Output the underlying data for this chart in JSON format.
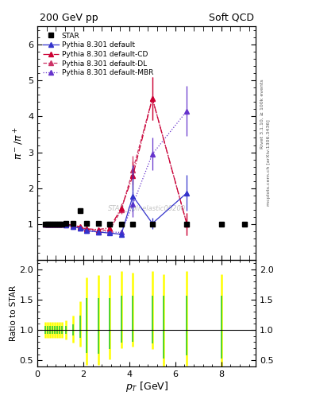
{
  "title_left": "200 GeV pp",
  "title_right": "Soft QCD",
  "ylabel_main": "$\\pi^- / \\pi^+$",
  "ylabel_ratio": "Ratio to STAR",
  "xlabel": "$p_T$ [GeV]",
  "right_label_top": "Rivet 3.1.10, ≥ 100k events",
  "right_label_bot": "mcplots.cern.ch [arXiv:1306.3436]",
  "watermark": "STAR_ppInelastic00200",
  "ylim_main": [
    0.0,
    6.5
  ],
  "ylim_ratio": [
    0.4,
    2.15
  ],
  "xlim": [
    0.0,
    9.5
  ],
  "yticks_main": [
    1,
    2,
    3,
    4,
    5,
    6
  ],
  "yticks_ratio": [
    0.5,
    1.0,
    1.5,
    2.0
  ],
  "star_x": [
    0.35,
    0.45,
    0.55,
    0.65,
    0.75,
    0.85,
    0.95,
    1.05,
    1.25,
    1.55,
    1.85,
    2.15,
    2.65,
    3.15,
    3.65,
    4.15,
    5.0,
    6.5,
    8.0,
    9.0
  ],
  "star_y": [
    1.01,
    1.0,
    1.0,
    1.0,
    1.01,
    1.0,
    1.0,
    1.0,
    1.02,
    1.03,
    1.38,
    1.02,
    1.02,
    1.0,
    1.01,
    1.0,
    1.0,
    1.0,
    1.0,
    1.0
  ],
  "star_yerr": [
    0.02,
    0.02,
    0.02,
    0.02,
    0.02,
    0.02,
    0.02,
    0.02,
    0.03,
    0.03,
    0.04,
    0.05,
    0.05,
    0.05,
    0.05,
    0.05,
    0.05,
    0.05,
    0.05,
    0.05
  ],
  "pythia_default_x": [
    0.35,
    0.45,
    0.55,
    0.65,
    0.75,
    0.85,
    0.95,
    1.05,
    1.25,
    1.55,
    1.85,
    2.15,
    2.65,
    3.15,
    3.65,
    4.15,
    5.0,
    6.5
  ],
  "pythia_default_y": [
    1.0,
    1.0,
    1.0,
    1.0,
    1.0,
    1.0,
    0.99,
    0.99,
    0.97,
    0.94,
    0.88,
    0.82,
    0.78,
    0.75,
    0.72,
    1.78,
    1.02,
    1.87
  ],
  "pythia_default_yerr_lo": [
    0.005,
    0.005,
    0.005,
    0.005,
    0.005,
    0.005,
    0.005,
    0.005,
    0.01,
    0.01,
    0.02,
    0.03,
    0.04,
    0.06,
    0.08,
    0.4,
    0.15,
    0.5
  ],
  "pythia_default_yerr_hi": [
    0.005,
    0.005,
    0.005,
    0.005,
    0.005,
    0.005,
    0.005,
    0.005,
    0.01,
    0.01,
    0.02,
    0.03,
    0.04,
    0.06,
    0.08,
    0.85,
    0.15,
    0.5
  ],
  "pythia_cd_x": [
    0.35,
    0.45,
    0.55,
    0.65,
    0.75,
    0.85,
    0.95,
    1.05,
    1.25,
    1.55,
    1.85,
    2.15,
    2.65,
    3.15,
    3.65,
    4.15,
    5.0,
    6.5
  ],
  "pythia_cd_y": [
    1.0,
    1.0,
    1.0,
    1.0,
    1.0,
    1.0,
    1.0,
    1.0,
    1.0,
    0.97,
    0.93,
    0.87,
    0.85,
    0.9,
    1.45,
    2.35,
    4.5,
    1.0
  ],
  "pythia_cd_yerr_lo": [
    0.005,
    0.005,
    0.005,
    0.005,
    0.005,
    0.005,
    0.005,
    0.005,
    0.01,
    0.01,
    0.02,
    0.03,
    0.05,
    0.08,
    0.12,
    0.4,
    0.6,
    0.3
  ],
  "pythia_cd_yerr_hi": [
    0.005,
    0.005,
    0.005,
    0.005,
    0.005,
    0.005,
    0.005,
    0.005,
    0.01,
    0.01,
    0.02,
    0.03,
    0.05,
    0.08,
    0.12,
    0.4,
    0.6,
    0.3
  ],
  "pythia_dl_x": [
    0.35,
    0.45,
    0.55,
    0.65,
    0.75,
    0.85,
    0.95,
    1.05,
    1.25,
    1.55,
    1.85,
    2.15,
    2.65,
    3.15,
    3.65,
    4.15,
    5.0,
    6.5
  ],
  "pythia_dl_y": [
    1.0,
    1.0,
    1.0,
    1.0,
    1.0,
    1.0,
    1.0,
    1.0,
    0.99,
    0.97,
    0.91,
    0.86,
    0.82,
    0.84,
    1.4,
    2.5,
    4.5,
    1.0
  ],
  "pythia_dl_yerr_lo": [
    0.005,
    0.005,
    0.005,
    0.005,
    0.005,
    0.005,
    0.005,
    0.005,
    0.01,
    0.01,
    0.02,
    0.03,
    0.05,
    0.07,
    0.12,
    0.4,
    0.6,
    0.3
  ],
  "pythia_dl_yerr_hi": [
    0.005,
    0.005,
    0.005,
    0.005,
    0.005,
    0.005,
    0.005,
    0.005,
    0.01,
    0.01,
    0.02,
    0.03,
    0.05,
    0.07,
    0.12,
    0.4,
    0.6,
    0.3
  ],
  "pythia_mbr_x": [
    0.35,
    0.45,
    0.55,
    0.65,
    0.75,
    0.85,
    0.95,
    1.05,
    1.25,
    1.55,
    1.85,
    2.15,
    2.65,
    3.15,
    3.65,
    4.15,
    5.0,
    6.5
  ],
  "pythia_mbr_y": [
    1.0,
    1.0,
    1.0,
    1.0,
    1.0,
    1.0,
    0.99,
    0.99,
    0.97,
    0.94,
    0.88,
    0.82,
    0.78,
    0.78,
    0.77,
    1.55,
    2.95,
    4.15
  ],
  "pythia_mbr_yerr_lo": [
    0.005,
    0.005,
    0.005,
    0.005,
    0.005,
    0.005,
    0.005,
    0.005,
    0.01,
    0.01,
    0.02,
    0.03,
    0.04,
    0.06,
    0.08,
    0.35,
    0.45,
    0.7
  ],
  "pythia_mbr_yerr_hi": [
    0.005,
    0.005,
    0.005,
    0.005,
    0.005,
    0.005,
    0.005,
    0.005,
    0.01,
    0.01,
    0.02,
    0.03,
    0.04,
    0.06,
    0.08,
    0.35,
    0.45,
    0.7
  ],
  "color_star": "#000000",
  "color_default": "#3333cc",
  "color_cd": "#cc0033",
  "color_dl": "#cc3366",
  "color_mbr": "#6633cc",
  "ratio_yellow_x": [
    0.35,
    0.45,
    0.55,
    0.65,
    0.75,
    0.85,
    0.95,
    1.05,
    1.25,
    1.55,
    1.85,
    2.15,
    2.65,
    3.15,
    3.65,
    4.15,
    5.0,
    5.5,
    6.5,
    8.0
  ],
  "ratio_yellow_lo": [
    0.87,
    0.87,
    0.87,
    0.87,
    0.87,
    0.87,
    0.87,
    0.87,
    0.84,
    0.79,
    0.73,
    0.42,
    0.42,
    0.52,
    0.7,
    0.72,
    0.68,
    0.38,
    0.41,
    0.4
  ],
  "ratio_yellow_hi": [
    1.13,
    1.13,
    1.13,
    1.13,
    1.13,
    1.13,
    1.13,
    1.13,
    1.16,
    1.23,
    1.47,
    1.87,
    1.9,
    1.9,
    1.97,
    1.94,
    1.97,
    1.92,
    1.97,
    1.92
  ],
  "ratio_green_x": [
    0.35,
    0.45,
    0.55,
    0.65,
    0.75,
    0.85,
    0.95,
    1.05,
    1.25,
    1.55,
    1.85,
    2.15,
    2.65,
    3.15,
    3.65,
    4.15,
    5.0,
    5.5,
    6.5,
    8.0
  ],
  "ratio_green_lo": [
    0.94,
    0.94,
    0.94,
    0.94,
    0.94,
    0.94,
    0.94,
    0.94,
    0.93,
    0.91,
    0.87,
    0.62,
    0.61,
    0.68,
    0.79,
    0.8,
    0.78,
    0.53,
    0.58,
    0.53
  ],
  "ratio_green_hi": [
    1.06,
    1.06,
    1.06,
    1.06,
    1.06,
    1.06,
    1.06,
    1.06,
    1.07,
    1.09,
    1.23,
    1.53,
    1.53,
    1.53,
    1.56,
    1.56,
    1.56,
    1.56,
    1.56,
    1.56
  ]
}
